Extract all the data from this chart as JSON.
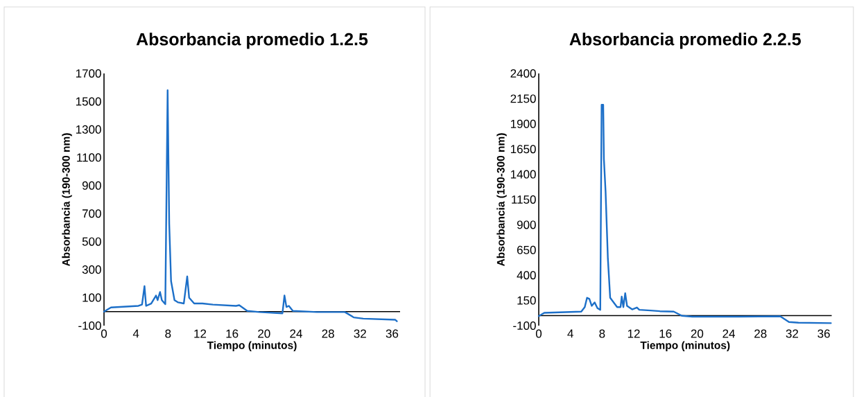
{
  "chart_data": [
    {
      "type": "line",
      "title": "Absorbancia promedio 1.2.5",
      "xlabel": "Tiempo (minutos)",
      "ylabel": "Absorbancia  (190-300 nm)",
      "x": [
        0,
        0.87,
        4.3,
        4.75,
        5.06,
        5.26,
        5.9,
        6.5,
        6.7,
        7.0,
        7.23,
        7.66,
        7.95,
        8.15,
        8.38,
        8.81,
        9.25,
        9.97,
        10.4,
        10.64,
        11.27,
        12.3,
        13.6,
        16.5,
        16.9,
        17.9,
        19.4,
        22.3,
        22.55,
        22.8,
        23.1,
        23.6,
        26.6,
        30.1,
        31.2,
        32.4,
        36.4,
        36.6
      ],
      "series": [
        {
          "color": "#1c6fc8",
          "values": [
            0,
            30,
            41,
            50,
            182,
            41,
            58,
            115,
            82,
            140,
            82,
            53,
            1580,
            627,
            218,
            82,
            66,
            58,
            251,
            99,
            58,
            58,
            50,
            41,
            46,
            5,
            -3,
            -12,
            115,
            33,
            41,
            5,
            -3,
            -3,
            -41,
            -50,
            -58,
            -69
          ]
        }
      ],
      "xlim": [
        0,
        37
      ],
      "ylim": [
        -100,
        1700
      ],
      "xticks": [
        0,
        4,
        8,
        12,
        16,
        20,
        24,
        28,
        32,
        36
      ],
      "yticks": [
        -100,
        100,
        300,
        500,
        700,
        900,
        1100,
        1300,
        1500,
        1700
      ]
    },
    {
      "type": "line",
      "title": "Absorbancia promedio 2.2.5",
      "xlabel": "Tiempo (minutos)",
      "ylabel": "Absorbancia  (190-300 nm)",
      "x": [
        0,
        0.7,
        5.37,
        5.81,
        6.1,
        6.39,
        6.69,
        7.06,
        7.41,
        7.77,
        7.94,
        8.14,
        8.23,
        8.44,
        8.73,
        9.02,
        9.46,
        9.9,
        10.33,
        10.48,
        10.69,
        10.92,
        11.15,
        11.8,
        12.4,
        12.7,
        14.1,
        15.3,
        17.05,
        18.07,
        19.4,
        25.2,
        30.5,
        31.6,
        32.8,
        36.9
      ],
      "series": [
        {
          "color": "#1c6fc8",
          "values": [
            -5,
            27,
            39,
            84,
            176,
            165,
            96,
            130,
            73,
            57,
            2090,
            2090,
            1550,
            1230,
            565,
            176,
            130,
            84,
            84,
            188,
            84,
            222,
            96,
            61,
            80,
            57,
            50,
            43,
            39,
            -2,
            -11,
            -11,
            -7,
            -64,
            -71,
            -75
          ]
        }
      ],
      "xlim": [
        0,
        37
      ],
      "ylim": [
        -100,
        2400
      ],
      "xticks": [
        0,
        4,
        8,
        12,
        16,
        20,
        24,
        28,
        32,
        36
      ],
      "yticks": [
        -100,
        150,
        400,
        650,
        900,
        1150,
        1400,
        1650,
        1900,
        2150,
        2400
      ]
    }
  ]
}
